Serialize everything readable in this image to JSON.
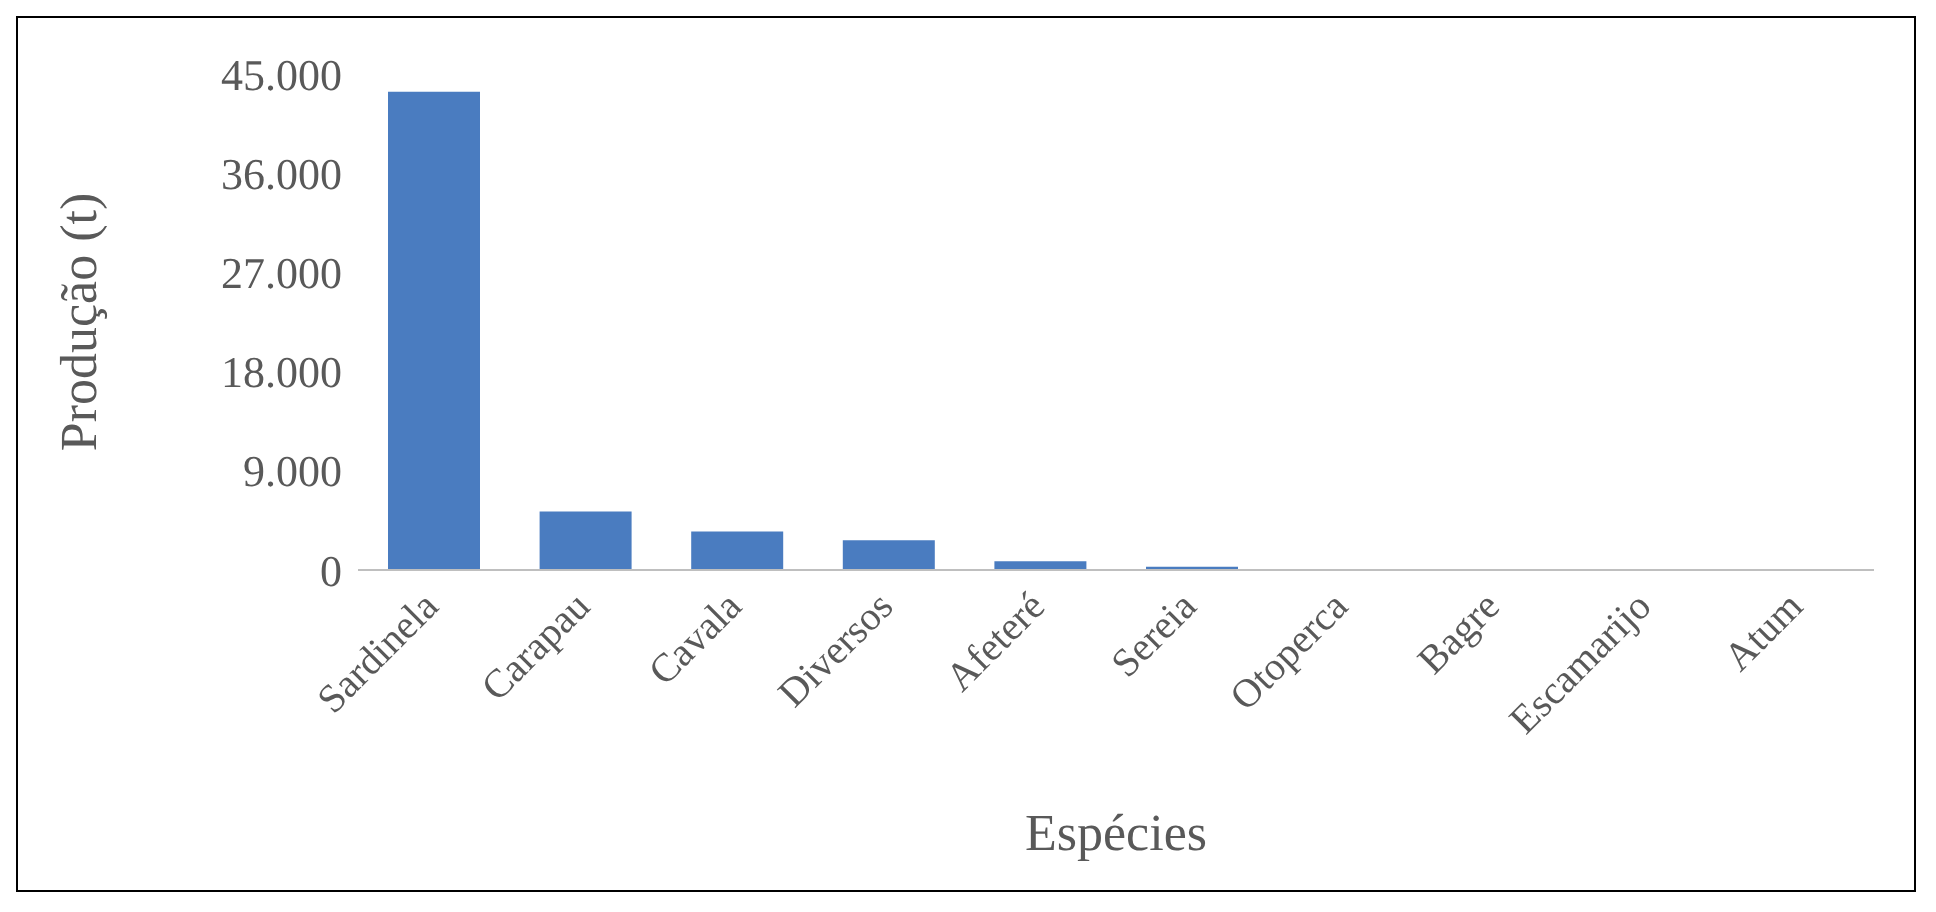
{
  "chart_data": {
    "type": "bar",
    "xlabel": "Espécies",
    "ylabel": "Produção (t)",
    "categories": [
      "Sardinela",
      "Carapau",
      "Cavala",
      "Diversos",
      "Afeteré",
      "Sereia",
      "Otoperca",
      "Bagre",
      "Escamarijo",
      "Atum"
    ],
    "values": [
      43400,
      5300,
      3500,
      2700,
      800,
      300,
      null,
      null,
      null,
      null
    ],
    "color": "#4a7cc0",
    "ylim": [
      0,
      45000
    ],
    "yticks": [
      {
        "value": 0,
        "label": "0"
      },
      {
        "value": 9000,
        "label": "9.000"
      },
      {
        "value": 18000,
        "label": "18.000"
      },
      {
        "value": 27000,
        "label": "27.000"
      },
      {
        "value": 36000,
        "label": "36.000"
      },
      {
        "value": 45000,
        "label": "45.000"
      }
    ],
    "grid": false,
    "legend": false
  }
}
